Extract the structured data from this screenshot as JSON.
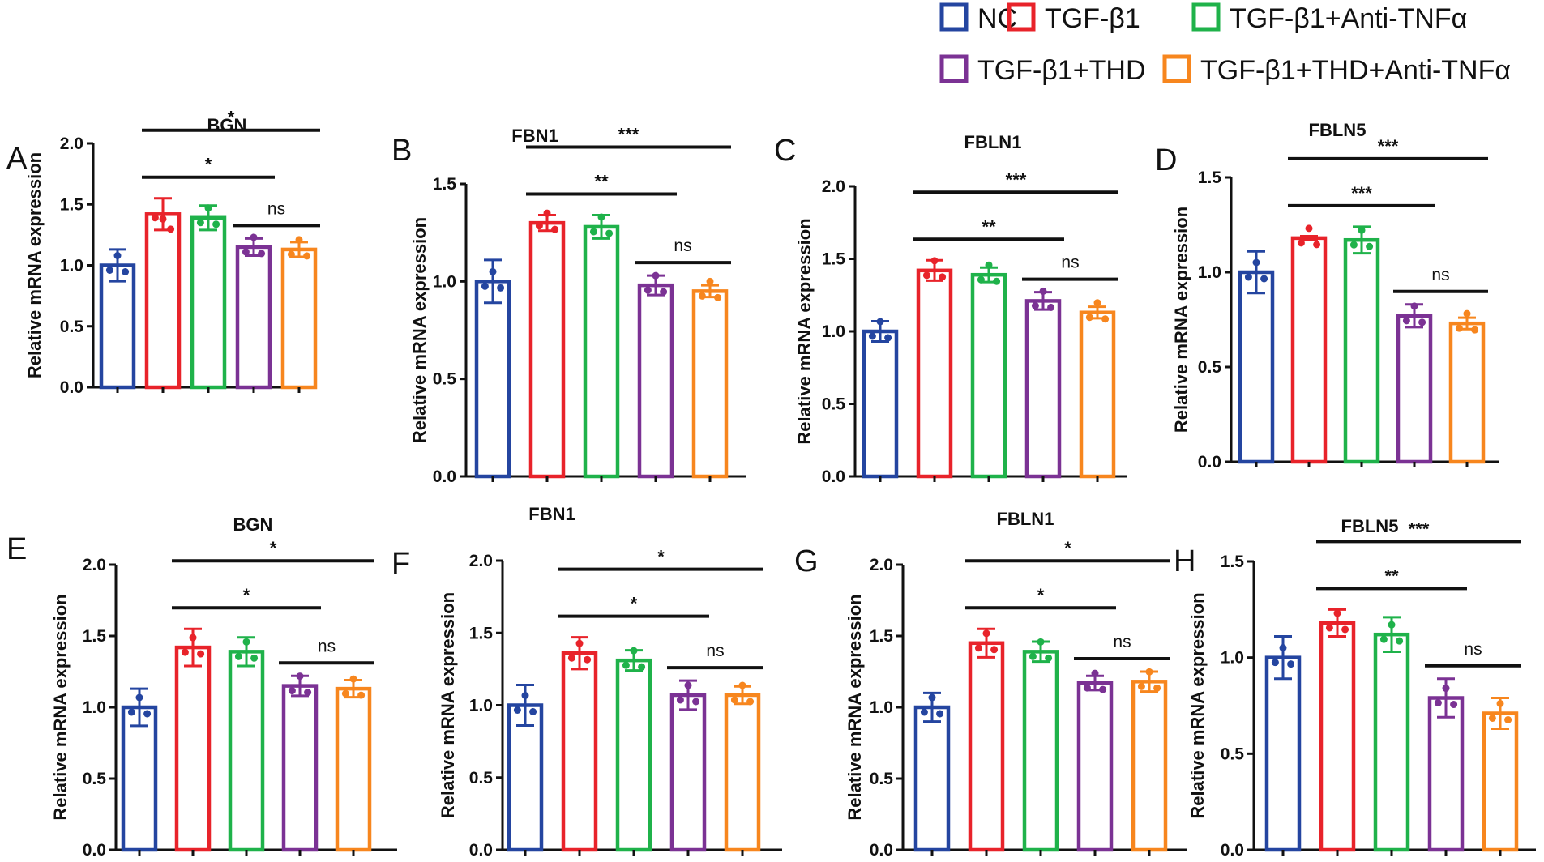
{
  "legend": [
    {
      "label": "NC",
      "color": "#2445a0"
    },
    {
      "label": "TGF-β1",
      "color": "#e8232a"
    },
    {
      "label": "TGF-β1+Anti-TNFα",
      "color": "#1fb24a"
    },
    {
      "label": "TGF-β1+THD",
      "color": "#7b3294"
    },
    {
      "label": "TGF-β1+THD+Anti-TNFα",
      "color": "#f7861e"
    }
  ],
  "chart_data": [
    {
      "panel": "A",
      "type": "bar",
      "title": "BGN",
      "ylabel": "Relative mRNA expression",
      "ylim": [
        0,
        2.0
      ],
      "yticks": [
        "0.0",
        "0.5",
        "1.0",
        "1.5",
        "2.0"
      ],
      "ytick_values": [
        0,
        0.5,
        1.0,
        1.5,
        2.0
      ],
      "values": [
        1.0,
        1.42,
        1.39,
        1.15,
        1.13
      ],
      "errors": [
        0.13,
        0.13,
        0.1,
        0.07,
        0.06
      ],
      "points": [
        [
          1.0,
          1.0,
          1.0
        ],
        [
          1.43,
          1.3,
          1.35
        ],
        [
          1.39,
          1.39,
          1.39
        ],
        [
          1.15,
          1.15,
          1.15
        ],
        [
          1.13,
          1.13,
          1.13
        ]
      ],
      "comparisons": [
        {
          "from": 1,
          "to": 3,
          "label": "*"
        },
        {
          "from": 1,
          "to": 4,
          "label": "*"
        },
        {
          "from": 3,
          "to": 4,
          "label": "ns"
        }
      ]
    },
    {
      "panel": "B",
      "type": "bar",
      "title": "FBN1",
      "ylabel": "Relative mRNA expression",
      "ylim": [
        0,
        1.5
      ],
      "yticks": [
        "0.0",
        "0.5",
        "1.0",
        "1.5"
      ],
      "ytick_values": [
        0,
        0.5,
        1.0,
        1.5
      ],
      "values": [
        1.0,
        1.3,
        1.28,
        0.98,
        0.95
      ],
      "errors": [
        0.11,
        0.04,
        0.06,
        0.05,
        0.03
      ],
      "points": [
        [
          1.0,
          1.0,
          1.0
        ],
        [
          1.31,
          1.3,
          1.3
        ],
        [
          1.28,
          1.28,
          1.28
        ],
        [
          0.98,
          0.98,
          0.98
        ],
        [
          0.95,
          0.95,
          0.95
        ]
      ],
      "comparisons": [
        {
          "from": 1,
          "to": 3,
          "label": "**"
        },
        {
          "from": 1,
          "to": 4,
          "label": "***"
        },
        {
          "from": 3,
          "to": 4,
          "label": "ns"
        }
      ]
    },
    {
      "panel": "C",
      "type": "bar",
      "title": "FBLN1",
      "ylabel": "Relative mRNA expression",
      "ylim": [
        0,
        2.0
      ],
      "yticks": [
        "0.0",
        "0.5",
        "1.0",
        "1.5",
        "2.0"
      ],
      "ytick_values": [
        0,
        0.5,
        1.0,
        1.5,
        2.0
      ],
      "values": [
        1.0,
        1.42,
        1.39,
        1.21,
        1.13
      ],
      "errors": [
        0.07,
        0.07,
        0.05,
        0.06,
        0.04
      ],
      "points": [
        [
          1.0,
          1.0,
          1.0
        ],
        [
          1.42,
          1.42,
          1.42
        ],
        [
          1.39,
          1.39,
          1.39
        ],
        [
          1.21,
          1.21,
          1.21
        ],
        [
          1.13,
          1.13,
          1.13
        ]
      ],
      "comparisons": [
        {
          "from": 1,
          "to": 3,
          "label": "**"
        },
        {
          "from": 1,
          "to": 4,
          "label": "***"
        },
        {
          "from": 3,
          "to": 4,
          "label": "ns"
        }
      ]
    },
    {
      "panel": "D",
      "type": "bar",
      "title": "FBLN5",
      "ylabel": "Relative mRNA expression",
      "ylim": [
        0,
        1.5
      ],
      "yticks": [
        "0.0",
        "0.5",
        "1.0",
        "1.5"
      ],
      "ytick_values": [
        0,
        0.5,
        1.0,
        1.5
      ],
      "values": [
        1.0,
        1.18,
        1.17,
        0.77,
        0.73
      ],
      "errors": [
        0.11,
        0.01,
        0.07,
        0.06,
        0.03
      ],
      "points": [
        [
          1.0,
          1.0,
          1.0
        ],
        [
          1.18,
          1.18,
          1.18
        ],
        [
          1.17,
          1.17,
          1.17
        ],
        [
          0.77,
          0.77,
          0.77
        ],
        [
          0.73,
          0.73,
          0.73
        ]
      ],
      "comparisons": [
        {
          "from": 1,
          "to": 3,
          "label": "***"
        },
        {
          "from": 1,
          "to": 4,
          "label": "***"
        },
        {
          "from": 3,
          "to": 4,
          "label": "ns"
        }
      ]
    },
    {
      "panel": "E",
      "type": "bar",
      "title": "BGN",
      "ylabel": "Relative mRNA expression",
      "ylim": [
        0,
        2.0
      ],
      "yticks": [
        "0.0",
        "0.5",
        "1.0",
        "1.5",
        "2.0"
      ],
      "ytick_values": [
        0,
        0.5,
        1.0,
        1.5,
        2.0
      ],
      "values": [
        1.0,
        1.42,
        1.39,
        1.15,
        1.13
      ],
      "errors": [
        0.13,
        0.13,
        0.1,
        0.07,
        0.06
      ],
      "points": [
        [
          1.0,
          1.0,
          1.0
        ],
        [
          1.42,
          1.42,
          1.42
        ],
        [
          1.39,
          1.39,
          1.39
        ],
        [
          1.15,
          1.15,
          1.15
        ],
        [
          1.13,
          1.13,
          1.13
        ]
      ],
      "comparisons": [
        {
          "from": 1,
          "to": 3,
          "label": "*"
        },
        {
          "from": 1,
          "to": 4,
          "label": "*"
        },
        {
          "from": 3,
          "to": 4,
          "label": "ns"
        }
      ]
    },
    {
      "panel": "F",
      "type": "bar",
      "title": "FBN1",
      "ylabel": "Relative mRNA expression",
      "ylim": [
        0,
        2.0
      ],
      "yticks": [
        "0.0",
        "0.5",
        "1.0",
        "1.5",
        "2.0"
      ],
      "ytick_values": [
        0,
        0.5,
        1.0,
        1.5,
        2.0
      ],
      "values": [
        1.0,
        1.36,
        1.31,
        1.07,
        1.07
      ],
      "errors": [
        0.14,
        0.11,
        0.07,
        0.1,
        0.06
      ],
      "points": [
        [
          1.0,
          1.0,
          1.0
        ],
        [
          1.36,
          1.36,
          1.36
        ],
        [
          1.31,
          1.31,
          1.31
        ],
        [
          1.07,
          1.07,
          1.07
        ],
        [
          1.07,
          1.07,
          1.07
        ]
      ],
      "comparisons": [
        {
          "from": 1,
          "to": 3,
          "label": "*"
        },
        {
          "from": 1,
          "to": 4,
          "label": "*"
        },
        {
          "from": 3,
          "to": 4,
          "label": "ns"
        }
      ]
    },
    {
      "panel": "G",
      "type": "bar",
      "title": "FBLN1",
      "ylabel": "Relative mRNA expression",
      "ylim": [
        0,
        2.0
      ],
      "yticks": [
        "0.0",
        "0.5",
        "1.0",
        "1.5",
        "2.0"
      ],
      "ytick_values": [
        0,
        0.5,
        1.0,
        1.5,
        2.0
      ],
      "values": [
        1.0,
        1.45,
        1.39,
        1.17,
        1.18
      ],
      "errors": [
        0.1,
        0.1,
        0.07,
        0.05,
        0.07
      ],
      "points": [
        [
          1.0,
          1.0,
          1.0
        ],
        [
          1.45,
          1.45,
          1.45
        ],
        [
          1.39,
          1.39,
          1.39
        ],
        [
          1.17,
          1.17,
          1.17
        ],
        [
          1.18,
          1.18,
          1.18
        ]
      ],
      "comparisons": [
        {
          "from": 1,
          "to": 3,
          "label": "*"
        },
        {
          "from": 1,
          "to": 4,
          "label": "*"
        },
        {
          "from": 3,
          "to": 4,
          "label": "ns"
        }
      ]
    },
    {
      "panel": "H",
      "type": "bar",
      "title": "FBLN5",
      "ylabel": "Relative mRNA expression",
      "ylim": [
        0,
        1.5
      ],
      "yticks": [
        "0.0",
        "0.5",
        "1.0",
        "1.5"
      ],
      "ytick_values": [
        0,
        0.5,
        1.0,
        1.5
      ],
      "values": [
        1.0,
        1.18,
        1.12,
        0.79,
        0.71
      ],
      "errors": [
        0.11,
        0.07,
        0.09,
        0.1,
        0.08
      ],
      "points": [
        [
          1.0,
          1.0,
          1.0
        ],
        [
          1.18,
          1.18,
          1.18
        ],
        [
          1.12,
          1.12,
          1.12
        ],
        [
          0.79,
          0.79,
          0.79
        ],
        [
          0.71,
          0.71,
          0.71
        ]
      ],
      "comparisons": [
        {
          "from": 1,
          "to": 3,
          "label": "**"
        },
        {
          "from": 1,
          "to": 4,
          "label": "***"
        },
        {
          "from": 3,
          "to": 4,
          "label": "ns"
        }
      ]
    }
  ]
}
